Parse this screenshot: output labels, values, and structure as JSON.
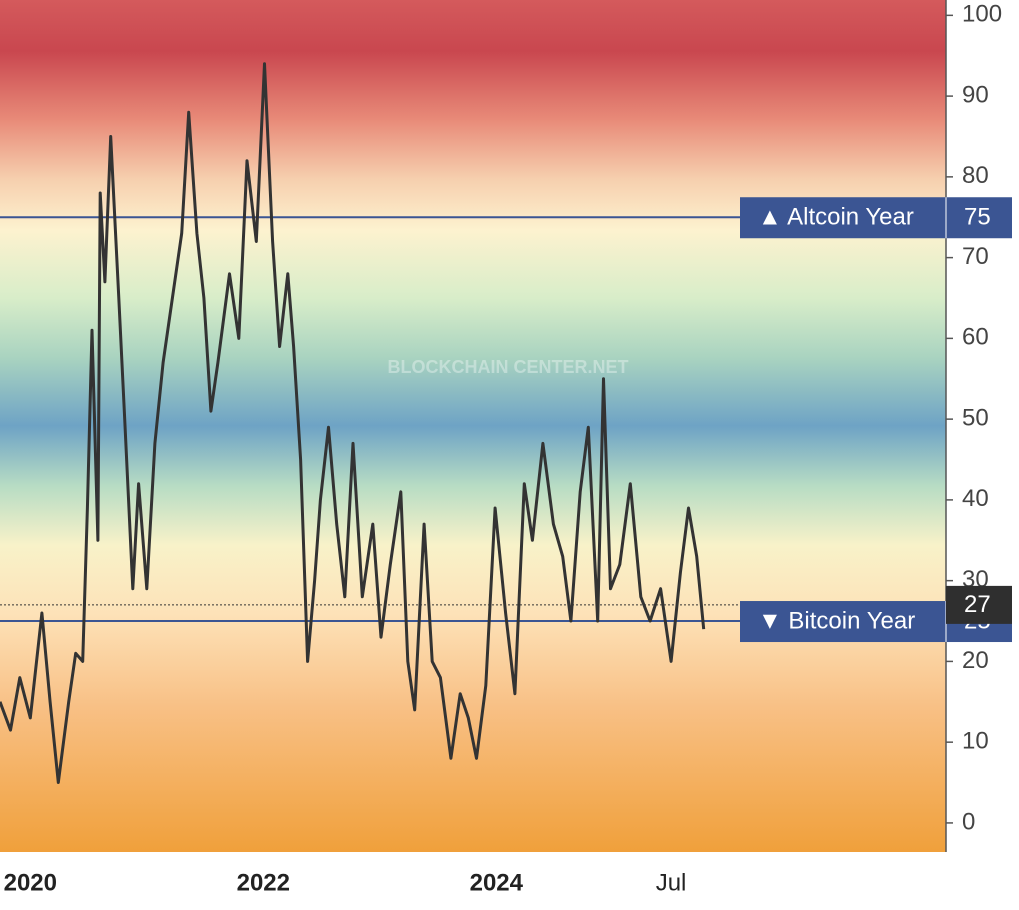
{
  "chart_data": {
    "type": "line",
    "watermark": "BLOCKCHAIN CENTER.NET",
    "x": [
      2019.74,
      2019.83,
      2019.91,
      2020.0,
      2020.1,
      2020.17,
      2020.24,
      2020.33,
      2020.39,
      2020.45,
      2020.49,
      2020.53,
      2020.58,
      2020.6,
      2020.64,
      2020.69,
      2020.76,
      2020.81,
      2020.88,
      2020.93,
      2021.0,
      2021.07,
      2021.14,
      2021.22,
      2021.3,
      2021.36,
      2021.43,
      2021.49,
      2021.55,
      2021.61,
      2021.71,
      2021.79,
      2021.86,
      2021.94,
      2022.01,
      2022.08,
      2022.14,
      2022.21,
      2022.26,
      2022.32,
      2022.38,
      2022.44,
      2022.49,
      2022.56,
      2022.63,
      2022.7,
      2022.77,
      2022.85,
      2022.94,
      2023.01,
      2023.09,
      2023.18,
      2023.24,
      2023.3,
      2023.38,
      2023.45,
      2023.52,
      2023.61,
      2023.69,
      2023.76,
      2023.83,
      2023.91,
      2023.99,
      2024.08,
      2024.16,
      2024.24,
      2024.31,
      2024.4,
      2024.49,
      2024.57,
      2024.64,
      2024.72,
      2024.79,
      2024.87,
      2024.92,
      2024.98,
      2025.06,
      2025.15,
      2025.24,
      2025.32,
      2025.41,
      2025.5,
      2025.58,
      2025.65,
      2025.72,
      2025.78
    ],
    "series": [
      {
        "color": "#333333",
        "values": [
          15,
          11.5,
          18,
          13,
          26,
          15,
          5,
          15,
          21,
          20,
          39,
          61,
          35,
          78,
          67,
          85,
          65,
          50,
          29,
          42,
          29,
          47,
          57,
          65,
          73,
          88,
          73,
          65,
          51,
          57,
          68,
          60,
          82,
          72,
          94,
          72,
          59,
          68,
          59,
          45,
          20,
          30,
          40,
          49,
          37,
          28,
          47,
          28,
          37,
          23,
          32,
          41,
          20,
          14,
          37,
          20,
          18,
          8,
          16,
          13,
          8,
          17,
          39,
          26,
          16,
          42,
          35,
          47,
          37,
          33,
          25,
          41,
          49,
          25,
          55,
          29,
          32,
          42,
          28,
          25,
          29,
          20,
          31,
          39,
          33,
          24
        ]
      }
    ],
    "xlim": [
      2019.74,
      2027.86
    ],
    "xticks": [
      2020,
      2022,
      2024,
      {
        "value": 2025.5,
        "label": "Jul"
      }
    ],
    "ylim": [
      -3.6,
      101.9
    ],
    "yticks": [
      0,
      10,
      20,
      30,
      40,
      50,
      60,
      70,
      80,
      90,
      100
    ],
    "thresholds": [
      {
        "label": "▲ Altcoin Year",
        "value": 75,
        "color": "#3b5593"
      },
      {
        "label": "▼ Bitcoin Year",
        "value": 25,
        "color": "#3b5593"
      }
    ],
    "current_value": 27
  }
}
